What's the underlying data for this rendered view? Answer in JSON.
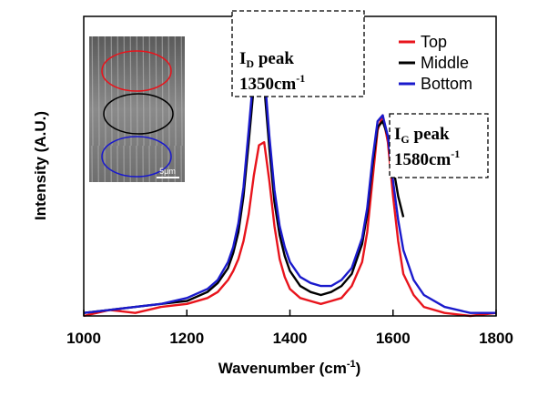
{
  "chart_data": {
    "type": "line",
    "x_label": {
      "text": "Wavenumber (cm",
      "sup": "-1",
      "end": ")"
    },
    "y_label": "Intensity (A.U.)",
    "x": [
      1000,
      1050,
      1100,
      1150,
      1200,
      1240,
      1260,
      1280,
      1290,
      1300,
      1310,
      1320,
      1330,
      1340,
      1350,
      1360,
      1370,
      1380,
      1390,
      1400,
      1420,
      1440,
      1460,
      1480,
      1500,
      1520,
      1540,
      1550,
      1560,
      1570,
      1580,
      1590,
      1600,
      1610,
      1620,
      1640,
      1660,
      1700,
      1750,
      1800
    ],
    "series": [
      {
        "name": "Top",
        "color": "#e8141c",
        "values": [
          0.0,
          0.02,
          0.01,
          0.03,
          0.04,
          0.06,
          0.08,
          0.12,
          0.15,
          0.19,
          0.25,
          0.34,
          0.47,
          0.57,
          0.58,
          0.45,
          0.3,
          0.19,
          0.13,
          0.09,
          0.06,
          0.05,
          0.04,
          0.05,
          0.06,
          0.1,
          0.18,
          0.28,
          0.45,
          0.62,
          0.67,
          0.58,
          0.4,
          0.25,
          0.14,
          0.07,
          0.03,
          0.01,
          0.0,
          0.01
        ]
      },
      {
        "name": "Middle",
        "color": "#000000",
        "values": [
          0.01,
          0.02,
          0.03,
          0.04,
          0.05,
          0.08,
          0.11,
          0.16,
          0.21,
          0.28,
          0.4,
          0.58,
          0.77,
          0.84,
          0.77,
          0.56,
          0.38,
          0.27,
          0.2,
          0.15,
          0.1,
          0.08,
          0.07,
          0.08,
          0.1,
          0.14,
          0.24,
          0.34,
          0.5,
          0.63,
          0.65,
          0.6,
          0.5,
          0.4,
          0.33,
          null,
          null,
          null,
          null,
          null
        ]
      },
      {
        "name": "Bottom",
        "color": "#1a1acc",
        "values": [
          0.01,
          0.02,
          0.03,
          0.04,
          0.06,
          0.09,
          0.12,
          0.18,
          0.23,
          0.31,
          0.43,
          0.62,
          0.82,
          0.9,
          0.82,
          0.6,
          0.42,
          0.3,
          0.23,
          0.18,
          0.13,
          0.11,
          0.1,
          0.1,
          0.12,
          0.16,
          0.26,
          0.36,
          0.52,
          0.65,
          0.67,
          0.6,
          0.45,
          0.32,
          0.22,
          0.12,
          0.07,
          0.03,
          0.01,
          0.01
        ]
      }
    ],
    "xlim": [
      1000,
      1800
    ],
    "xticks": [
      1000,
      1200,
      1400,
      1600,
      1800
    ],
    "ylim": [
      0,
      1
    ],
    "legend": "upper right",
    "annotations": [
      {
        "main": "I",
        "sub": "D",
        "text": " peak",
        "value": "1350cm",
        "sup": "-1"
      },
      {
        "main": "I",
        "sub": "G",
        "text": " peak",
        "value": "1580cm",
        "sup": "-1"
      }
    ],
    "inset": {
      "scale": "5μm"
    }
  }
}
